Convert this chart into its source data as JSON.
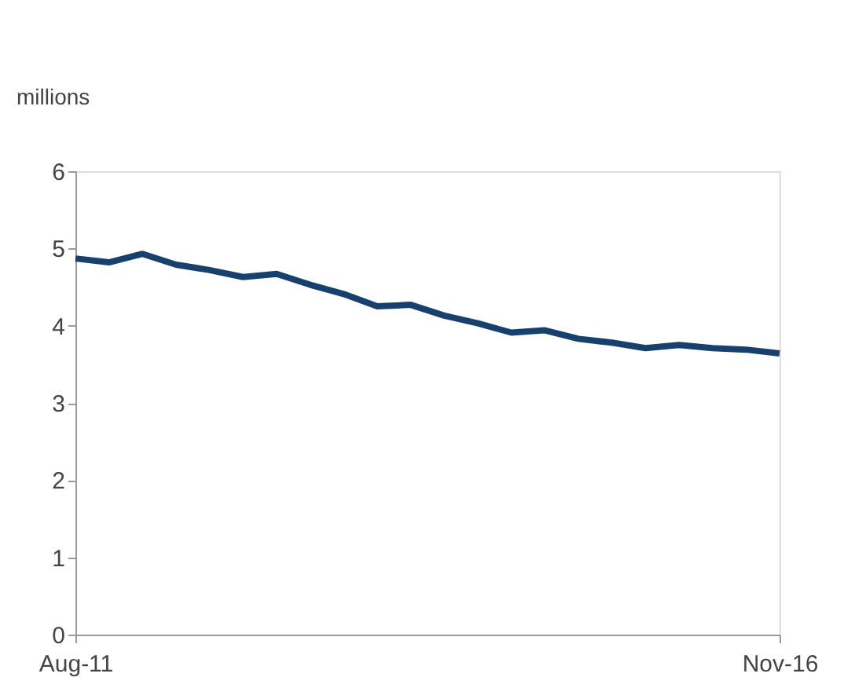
{
  "chart_data": {
    "type": "line",
    "ylabel": "millions",
    "categories": [
      "Aug-11",
      null,
      null,
      null,
      null,
      null,
      null,
      null,
      null,
      null,
      null,
      null,
      null,
      null,
      null,
      null,
      null,
      null,
      null,
      null,
      null,
      "Nov-16"
    ],
    "series": [
      {
        "color": "#17406d",
        "values": [
          4.87,
          4.82,
          4.93,
          4.79,
          4.72,
          4.63,
          4.67,
          4.53,
          4.41,
          4.25,
          4.27,
          4.13,
          4.03,
          3.91,
          3.94,
          3.83,
          3.78,
          3.71,
          3.75,
          3.71,
          3.69,
          3.64
        ]
      }
    ],
    "ylim": [
      0,
      6
    ],
    "yticks": [
      0,
      1,
      2,
      3,
      4,
      5,
      6
    ],
    "grid": false,
    "marker": "none",
    "line_style": "solid"
  }
}
